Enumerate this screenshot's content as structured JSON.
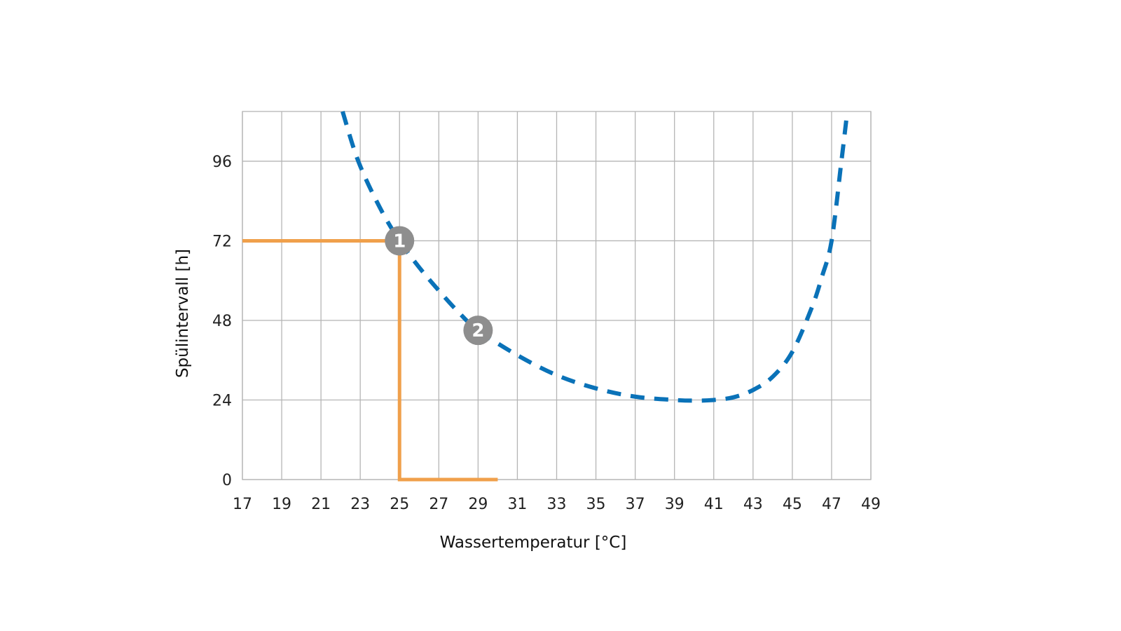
{
  "chart_data": {
    "type": "line",
    "title": "",
    "xlabel": "Wassertemperatur [°C]",
    "ylabel": "Spülintervall [h]",
    "xlim": [
      17,
      49
    ],
    "ylim": [
      0,
      111
    ],
    "xticks": [
      17,
      19,
      21,
      23,
      25,
      27,
      29,
      31,
      33,
      35,
      37,
      39,
      41,
      43,
      45,
      47,
      49
    ],
    "yticks": [
      0,
      24,
      48,
      72,
      96
    ],
    "grid": true,
    "colors": {
      "curve": "#0a72b8",
      "guide": "#f0a04b",
      "marker": "#8e8e8e",
      "grid": "#b5b5b5"
    },
    "series": [
      {
        "style": "dashed",
        "color": "#0a72b8",
        "x": [
          22.1,
          22.9,
          24,
          25,
          26,
          27,
          28,
          29,
          31,
          33,
          35,
          37,
          39,
          40,
          41,
          42,
          43,
          44,
          45,
          46,
          46.5,
          47,
          47.5,
          47.8
        ],
        "y": [
          111,
          96,
          82,
          72,
          64,
          57,
          50.5,
          45,
          37.5,
          31.5,
          27.5,
          25,
          24,
          23.8,
          24,
          24.8,
          27,
          31,
          38.5,
          52,
          61,
          72,
          96,
          111
        ]
      },
      {
        "style": "solid",
        "color": "#f0a04b",
        "x": [
          17,
          25,
          25,
          30
        ],
        "y": [
          72,
          72,
          0,
          0
        ]
      }
    ],
    "annotations": [
      {
        "label": "1",
        "x": 25,
        "y": 72
      },
      {
        "label": "2",
        "x": 29,
        "y": 45
      }
    ]
  }
}
